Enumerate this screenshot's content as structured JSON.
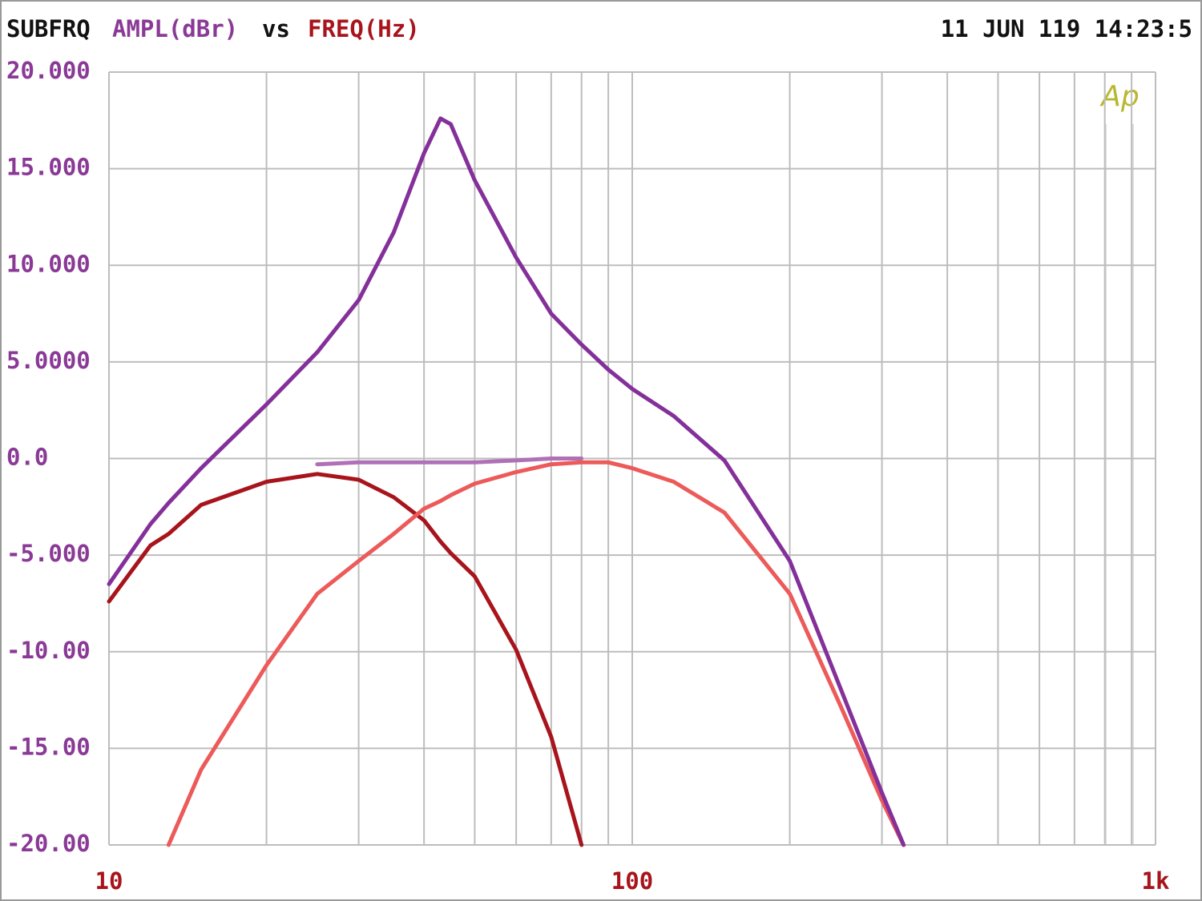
{
  "chart_data": {
    "type": "line",
    "title": "SUBFRQ",
    "ylabel": "AMPL(dBr)",
    "title_vs": "vs",
    "xlabel": "FREQ(Hz)",
    "timestamp": "11 JUN 119 14:23:5",
    "logo": "Ap",
    "xscale": "log",
    "grid": true,
    "xlim": [
      10,
      1000
    ],
    "xticks": [
      10,
      100,
      {
        "value": 1000,
        "label": "1k"
      }
    ],
    "xminorticks": [
      20,
      30,
      40,
      50,
      60,
      70,
      80,
      90,
      200,
      300,
      400,
      500,
      600,
      700,
      800,
      900
    ],
    "ylim": [
      -20,
      20
    ],
    "yticks": [
      {
        "value": 20,
        "label": "20.000"
      },
      {
        "value": 15,
        "label": "15.000"
      },
      {
        "value": 10,
        "label": "10.000"
      },
      {
        "value": 5,
        "label": "5.0000"
      },
      {
        "value": 0,
        "label": "0.0"
      },
      {
        "value": -5,
        "label": "-5.000"
      },
      {
        "value": -10,
        "label": "-10.00"
      },
      {
        "value": -15,
        "label": "-15.00"
      },
      {
        "value": -20,
        "label": "-20.00"
      }
    ],
    "x": [
      10,
      12,
      13,
      15,
      20,
      25,
      30,
      35,
      40,
      43,
      45,
      50,
      60,
      70,
      80,
      90,
      100,
      120,
      150,
      200,
      250,
      300,
      330
    ],
    "series": [
      {
        "color": "#b070b8",
        "values": [
          null,
          null,
          null,
          null,
          null,
          -0.3,
          -0.2,
          -0.2,
          -0.2,
          -0.2,
          -0.2,
          -0.2,
          -0.1,
          0,
          0,
          null,
          null,
          null,
          null,
          null,
          null,
          null,
          null
        ]
      },
      {
        "color": "#a8141c",
        "values": [
          -7.4,
          -4.5,
          -3.9,
          -2.4,
          -1.2,
          -0.8,
          -1.1,
          -2.0,
          -3.2,
          -4.3,
          -4.9,
          -6.1,
          -9.9,
          -14.4,
          -20,
          null,
          null,
          null,
          null,
          null,
          null,
          null,
          null
        ]
      },
      {
        "color": "#ec5a5a",
        "values": [
          null,
          null,
          -20,
          -16.1,
          -10.7,
          -7.0,
          -5.3,
          -3.9,
          -2.6,
          -2.2,
          -1.9,
          -1.3,
          -0.7,
          -0.3,
          -0.2,
          -0.2,
          -0.5,
          -1.2,
          -2.8,
          -7.0,
          -12.8,
          -17.7,
          -20
        ]
      },
      {
        "color": "#84309a",
        "values": [
          -6.5,
          -3.4,
          -2.3,
          -0.5,
          2.8,
          5.5,
          8.2,
          11.7,
          15.8,
          17.6,
          17.3,
          14.4,
          10.4,
          7.5,
          5.9,
          4.6,
          3.6,
          2.2,
          -0.1,
          -5.3,
          -11.9,
          -17.3,
          -20
        ]
      }
    ]
  }
}
